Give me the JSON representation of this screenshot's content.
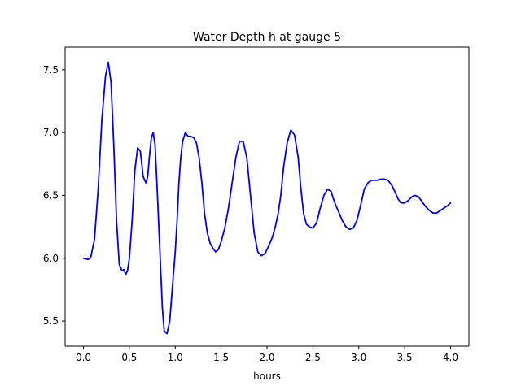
{
  "chart_data": {
    "type": "line",
    "title": "Water Depth h at gauge 5",
    "xlabel": "hours",
    "ylabel": "",
    "xlim": [
      -0.2,
      4.2
    ],
    "ylim": [
      5.3,
      7.68
    ],
    "xticks": [
      0.0,
      0.5,
      1.0,
      1.5,
      2.0,
      2.5,
      3.0,
      3.5,
      4.0
    ],
    "xtick_labels": [
      "0.0",
      "0.5",
      "1.0",
      "1.5",
      "2.0",
      "2.5",
      "3.0",
      "3.5",
      "4.0"
    ],
    "yticks": [
      5.5,
      6.0,
      6.5,
      7.0,
      7.5
    ],
    "ytick_labels": [
      "5.5",
      "6.0",
      "6.5",
      "7.0",
      "7.5"
    ],
    "grid": false,
    "legend": "none",
    "series": [
      {
        "color": "#0000ff",
        "x": [
          0.0,
          0.05,
          0.08,
          0.12,
          0.16,
          0.2,
          0.24,
          0.27,
          0.3,
          0.33,
          0.36,
          0.39,
          0.42,
          0.44,
          0.46,
          0.48,
          0.5,
          0.53,
          0.56,
          0.59,
          0.62,
          0.65,
          0.68,
          0.7,
          0.72,
          0.74,
          0.76,
          0.78,
          0.8,
          0.83,
          0.86,
          0.88,
          0.91,
          0.94,
          0.97,
          1.0,
          1.02,
          1.04,
          1.06,
          1.08,
          1.11,
          1.14,
          1.17,
          1.2,
          1.23,
          1.26,
          1.29,
          1.32,
          1.35,
          1.38,
          1.41,
          1.44,
          1.47,
          1.5,
          1.54,
          1.58,
          1.62,
          1.66,
          1.7,
          1.74,
          1.78,
          1.82,
          1.86,
          1.9,
          1.94,
          1.98,
          2.02,
          2.06,
          2.09,
          2.12,
          2.15,
          2.18,
          2.22,
          2.26,
          2.3,
          2.34,
          2.37,
          2.4,
          2.43,
          2.46,
          2.5,
          2.54,
          2.58,
          2.62,
          2.66,
          2.7,
          2.72,
          2.75,
          2.78,
          2.82,
          2.86,
          2.9,
          2.94,
          2.98,
          3.02,
          3.06,
          3.1,
          3.14,
          3.17,
          3.2,
          3.24,
          3.28,
          3.32,
          3.36,
          3.4,
          3.43,
          3.46,
          3.5,
          3.54,
          3.58,
          3.61,
          3.65,
          3.69,
          3.73,
          3.77,
          3.81,
          3.85,
          3.89,
          3.93,
          3.97,
          4.0
        ],
        "y": [
          6.0,
          5.99,
          6.01,
          6.15,
          6.55,
          7.1,
          7.45,
          7.56,
          7.4,
          6.9,
          6.3,
          5.95,
          5.9,
          5.91,
          5.87,
          5.9,
          6.0,
          6.3,
          6.7,
          6.88,
          6.85,
          6.65,
          6.6,
          6.65,
          6.82,
          6.96,
          7.0,
          6.9,
          6.6,
          6.1,
          5.6,
          5.42,
          5.4,
          5.5,
          5.78,
          6.05,
          6.3,
          6.6,
          6.8,
          6.93,
          7.0,
          6.97,
          6.97,
          6.96,
          6.92,
          6.8,
          6.6,
          6.35,
          6.2,
          6.12,
          6.08,
          6.05,
          6.07,
          6.13,
          6.24,
          6.4,
          6.6,
          6.8,
          6.93,
          6.93,
          6.8,
          6.5,
          6.2,
          6.05,
          6.02,
          6.04,
          6.1,
          6.17,
          6.25,
          6.35,
          6.5,
          6.72,
          6.92,
          7.02,
          6.98,
          6.8,
          6.55,
          6.35,
          6.27,
          6.25,
          6.24,
          6.28,
          6.4,
          6.5,
          6.55,
          6.53,
          6.48,
          6.42,
          6.37,
          6.3,
          6.25,
          6.23,
          6.24,
          6.3,
          6.42,
          6.55,
          6.6,
          6.62,
          6.62,
          6.62,
          6.63,
          6.63,
          6.62,
          6.58,
          6.52,
          6.47,
          6.44,
          6.44,
          6.46,
          6.49,
          6.5,
          6.49,
          6.45,
          6.41,
          6.38,
          6.36,
          6.36,
          6.38,
          6.4,
          6.42,
          6.44
        ]
      }
    ]
  }
}
